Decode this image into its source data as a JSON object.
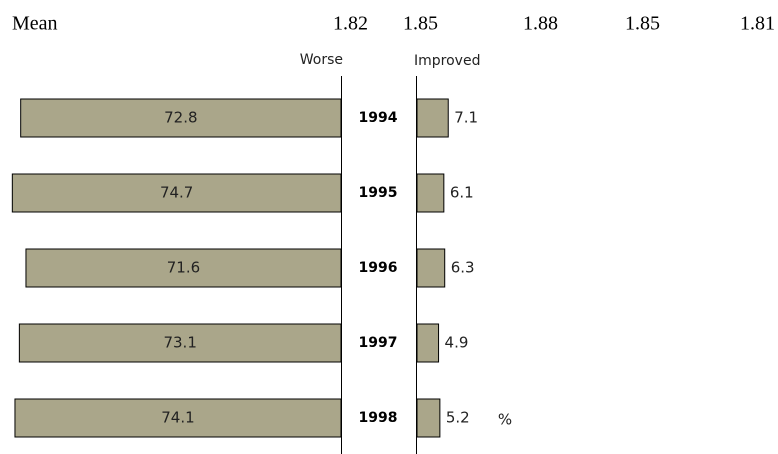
{
  "chart_data": {
    "type": "bar",
    "orientation": "diverging",
    "mean": {
      "label": "Mean",
      "values": [
        1.82,
        1.85,
        1.88,
        1.85,
        1.81
      ]
    },
    "categories": [
      "1994",
      "1995",
      "1996",
      "1997",
      "1998"
    ],
    "series": [
      {
        "name": "Worse",
        "color": "#aaa68a",
        "values": [
          72.8,
          74.7,
          71.6,
          73.1,
          74.1
        ]
      },
      {
        "name": "Improved",
        "color": "#aaa68a",
        "values": [
          7.1,
          6.1,
          6.3,
          4.9,
          5.2
        ]
      }
    ],
    "unit": "%"
  }
}
